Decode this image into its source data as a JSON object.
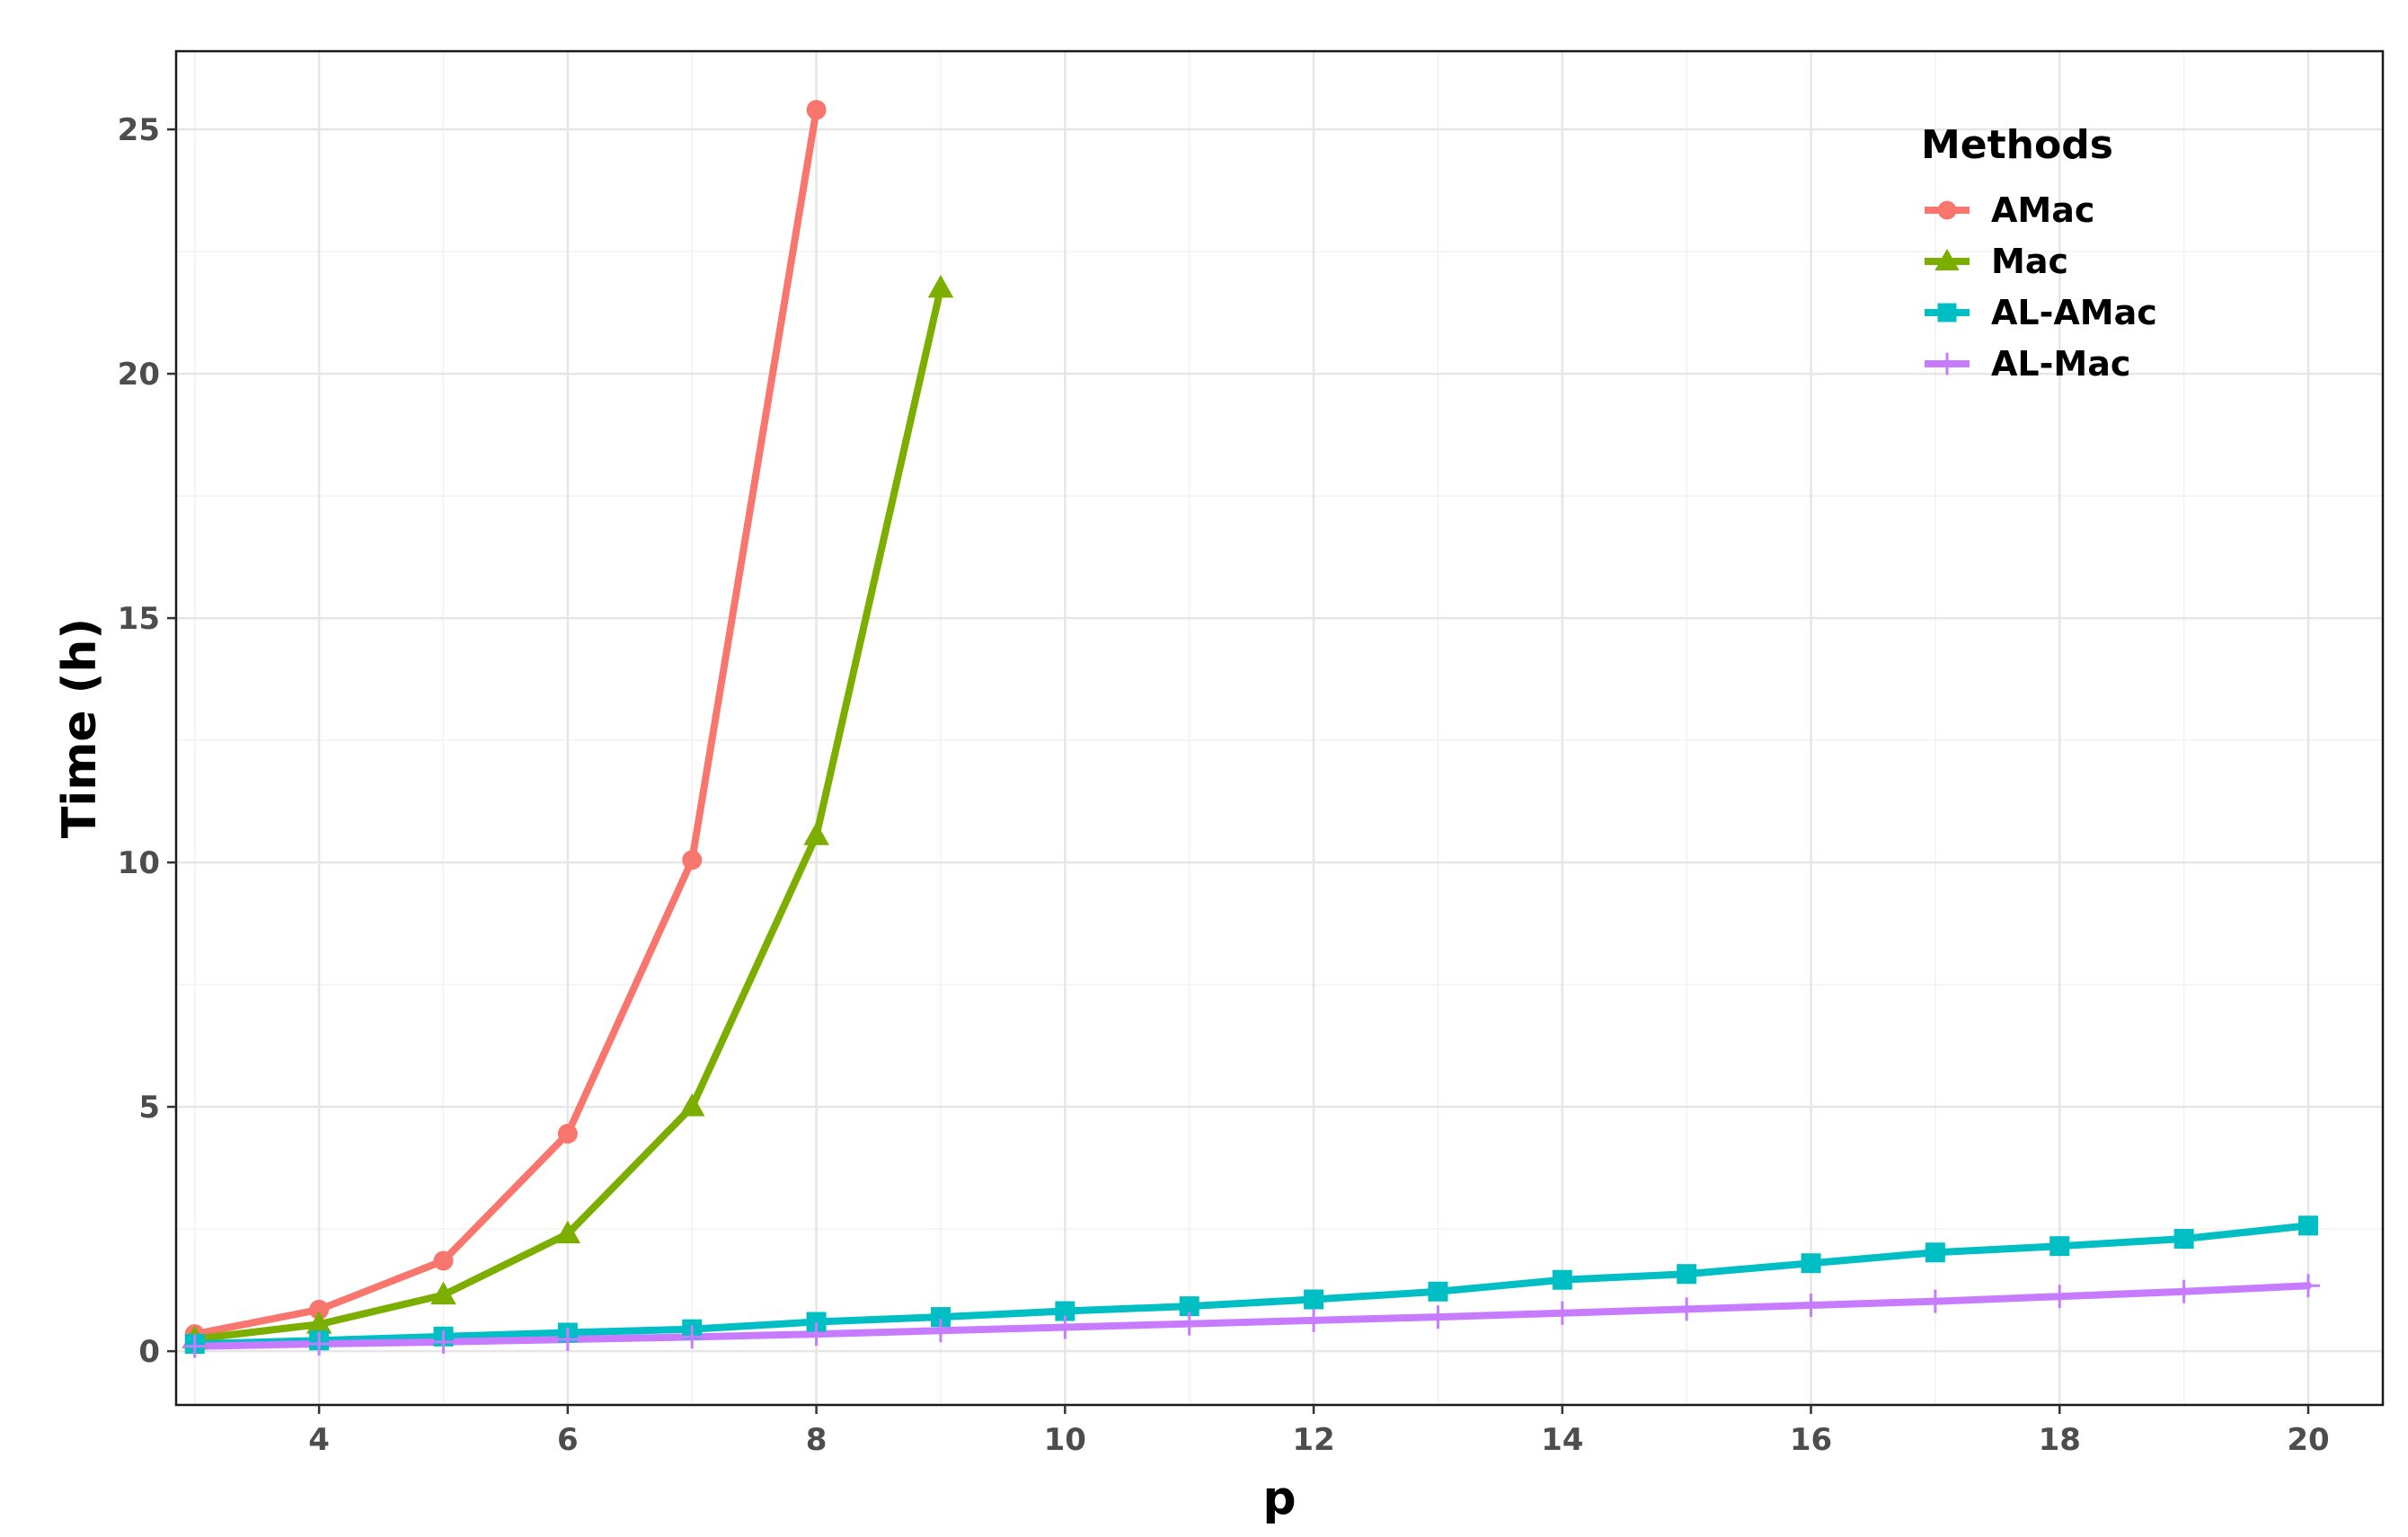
{
  "chart_data": {
    "type": "line",
    "title": "",
    "xlabel": "p",
    "ylabel": "Time (h)",
    "xlim": [
      2.85,
      20.6
    ],
    "ylim": [
      -1.1,
      26.6
    ],
    "x_ticks": [
      4,
      6,
      8,
      10,
      12,
      14,
      16,
      18,
      20
    ],
    "y_ticks": [
      0,
      5,
      10,
      15,
      20,
      25
    ],
    "grid": true,
    "legend": {
      "title": "Methods",
      "position": "top-right"
    },
    "series": [
      {
        "name": "AMac",
        "color": "#F8766D",
        "marker": "circle",
        "x": [
          3,
          4,
          5,
          6,
          7,
          8
        ],
        "y": [
          0.35,
          0.85,
          1.85,
          4.45,
          10.05,
          25.4
        ]
      },
      {
        "name": "Mac",
        "color": "#7CAE00",
        "marker": "triangle",
        "x": [
          3,
          4,
          5,
          6,
          7,
          8,
          9
        ],
        "y": [
          0.25,
          0.55,
          1.15,
          2.4,
          5.0,
          10.55,
          21.75
        ]
      },
      {
        "name": "AL-AMac",
        "color": "#00BFC4",
        "marker": "square",
        "x": [
          3,
          4,
          5,
          6,
          7,
          8,
          9,
          10,
          11,
          12,
          13,
          14,
          15,
          16,
          17,
          18,
          19,
          20
        ],
        "y": [
          0.15,
          0.22,
          0.3,
          0.38,
          0.45,
          0.6,
          0.7,
          0.82,
          0.92,
          1.06,
          1.22,
          1.46,
          1.58,
          1.8,
          2.02,
          2.15,
          2.3,
          2.57
        ]
      },
      {
        "name": "AL-Mac",
        "color": "#C77CFF",
        "marker": "plus",
        "x": [
          3,
          4,
          5,
          6,
          7,
          8,
          9,
          10,
          11,
          12,
          13,
          14,
          15,
          16,
          17,
          18,
          19,
          20
        ],
        "y": [
          0.1,
          0.15,
          0.19,
          0.24,
          0.29,
          0.35,
          0.42,
          0.49,
          0.56,
          0.63,
          0.7,
          0.78,
          0.86,
          0.94,
          1.02,
          1.12,
          1.22,
          1.34
        ]
      }
    ]
  }
}
